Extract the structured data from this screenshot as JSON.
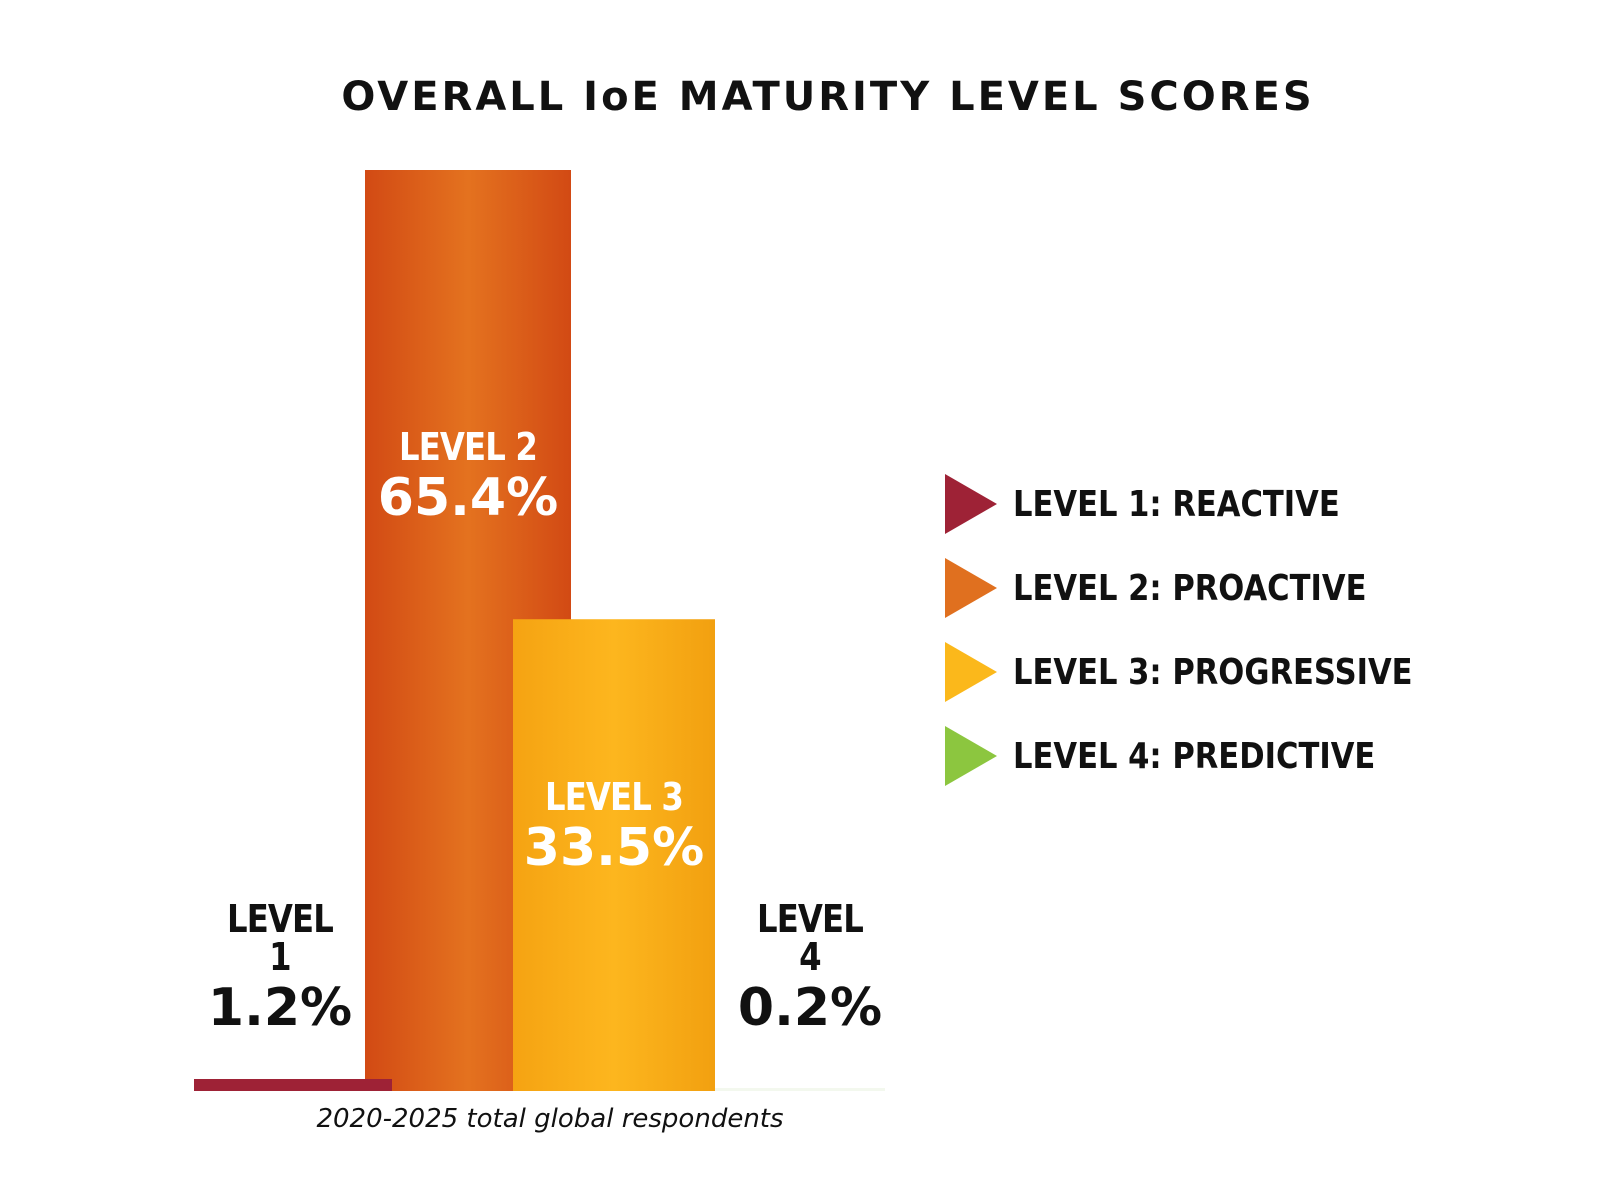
{
  "chart_data": {
    "type": "bar",
    "title": "OVERALL IoE MATURITY LEVEL SCORES",
    "categories": [
      "LEVEL 1",
      "LEVEL 2",
      "LEVEL 3",
      "LEVEL 4"
    ],
    "values": [
      1.2,
      65.4,
      33.5,
      0.2
    ],
    "value_labels": [
      "1.2%",
      "65.4%",
      "33.5%",
      "0.2%"
    ],
    "colors": [
      "#9e2236",
      "#e0601e",
      "#fbb01b",
      "#8cc63f"
    ],
    "unit": "%",
    "footnote": "2020-2025 total global respondents",
    "legend": {
      "placement": "right",
      "entries": [
        "LEVEL 1: REACTIVE",
        "LEVEL 2: PROACTIVE",
        "LEVEL 3: PROGRESSIVE",
        "LEVEL 4: PREDICTIVE"
      ]
    },
    "grid": false,
    "axes_visible": false
  }
}
